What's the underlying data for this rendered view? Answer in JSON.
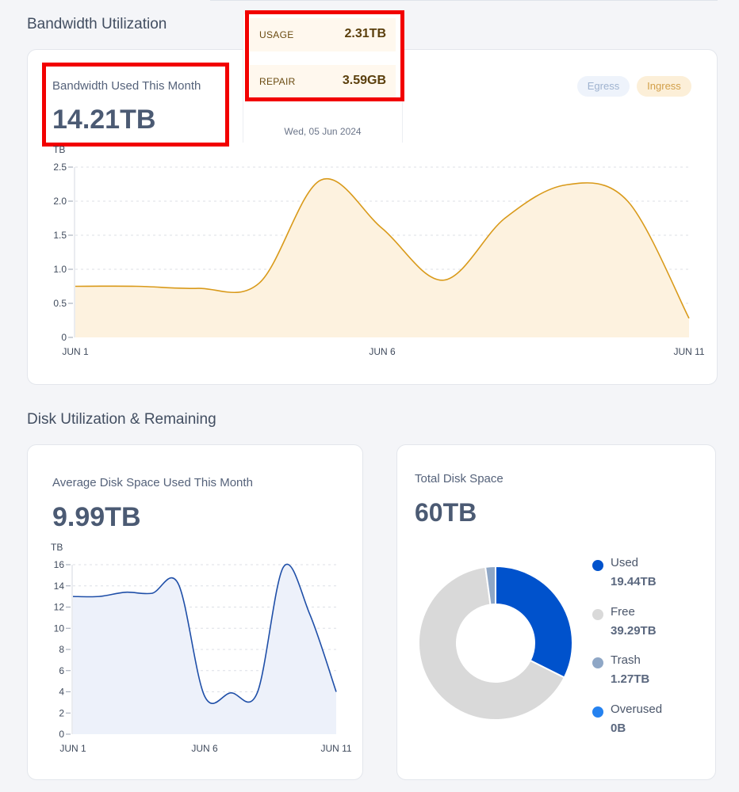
{
  "bandwidth": {
    "section_title": "Bandwidth Utilization",
    "used_label": "Bandwidth Used This Month",
    "used_value": "14.21TB",
    "tooltip": {
      "usage_label": "USAGE",
      "usage_value": "2.31TB",
      "repair_label": "REPAIR",
      "repair_value": "3.59GB",
      "date": "Wed, 05 Jun 2024"
    },
    "legend": {
      "egress": "Egress",
      "ingress": "Ingress"
    },
    "unit_label": "TB"
  },
  "disk": {
    "section_title": "Disk Utilization & Remaining",
    "avg_label": "Average Disk Space Used This Month",
    "avg_value": "9.99TB",
    "unit_label": "TB",
    "total_label": "Total Disk Space",
    "total_value": "60TB",
    "legend": [
      {
        "name": "Used",
        "value": "19.44TB",
        "color": "#0052cc"
      },
      {
        "name": "Free",
        "value": "39.29TB",
        "color": "#d9d9d9"
      },
      {
        "name": "Trash",
        "value": "1.27TB",
        "color": "#8fa7c6"
      },
      {
        "name": "Overused",
        "value": "0B",
        "color": "#2582f0"
      }
    ]
  },
  "chart_data": [
    {
      "type": "area",
      "ylabel": "TB",
      "ylim": [
        0,
        2.5
      ],
      "yticks": [
        "0",
        "0.5",
        "1.0",
        "1.5",
        "2.0",
        "2.5"
      ],
      "xticks": [
        "JUN 1",
        "JUN 6",
        "JUN 11"
      ],
      "grid": true,
      "legend_position": "top-right",
      "x": [
        1,
        2,
        3,
        4,
        5,
        6,
        7,
        8,
        9,
        10,
        11
      ],
      "series": [
        {
          "name": "Ingress",
          "color": "#d99a1a",
          "fill": "#fdf2df",
          "values": [
            0.75,
            0.75,
            0.72,
            0.8,
            2.31,
            1.6,
            0.84,
            1.75,
            2.24,
            2.0,
            0.28
          ]
        }
      ]
    },
    {
      "type": "area",
      "ylabel": "TB",
      "ylim": [
        0,
        16
      ],
      "yticks": [
        "0",
        "2",
        "4",
        "6",
        "8",
        "10",
        "12",
        "14",
        "16"
      ],
      "xticks": [
        "JUN 1",
        "JUN 6",
        "JUN 11"
      ],
      "grid": true,
      "x": [
        1,
        2,
        3,
        4,
        5,
        6,
        7,
        8,
        9,
        10,
        11
      ],
      "series": [
        {
          "color": "#1f4fa8",
          "fill": "#edf1fa",
          "values": [
            13.0,
            13.0,
            13.4,
            13.3,
            14.2,
            3.6,
            3.9,
            3.9,
            15.8,
            11.3,
            4.0
          ]
        }
      ]
    },
    {
      "type": "pie",
      "title": "Total Disk Space",
      "labels": [
        "Used",
        "Free",
        "Trash",
        "Overused"
      ],
      "values": [
        19.44,
        39.29,
        1.27,
        0
      ],
      "colors": [
        "#0052cc",
        "#d9d9d9",
        "#8fa7c6",
        "#2582f0"
      ]
    }
  ]
}
